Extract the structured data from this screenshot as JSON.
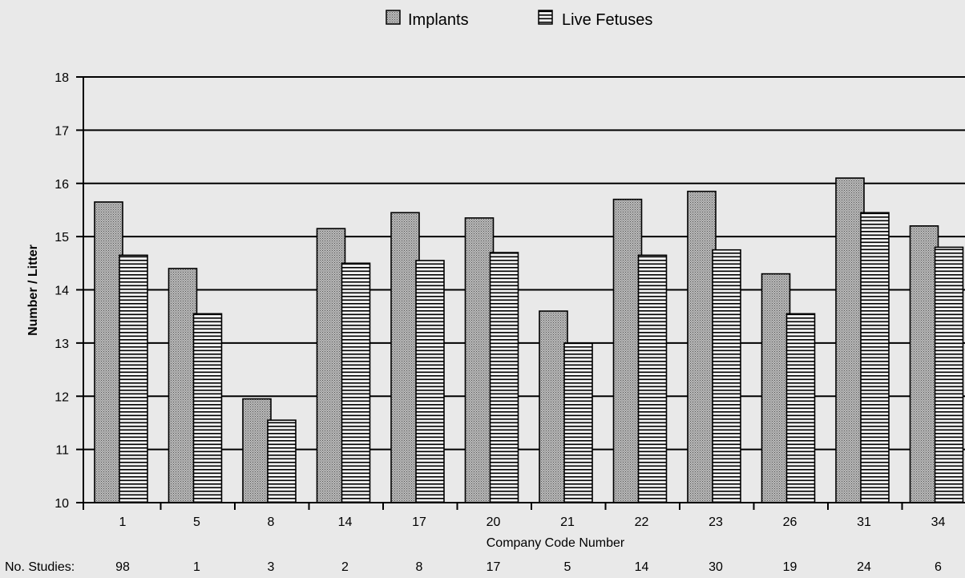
{
  "chart_data": {
    "type": "bar",
    "xlabel": "Company Code Number",
    "ylabel": "Number / Litter",
    "ylim": [
      10,
      18
    ],
    "yticks": [
      10,
      11,
      12,
      13,
      14,
      15,
      16,
      17,
      18
    ],
    "grid": true,
    "legend_position": "top-center",
    "categories": [
      "1",
      "5",
      "8",
      "14",
      "17",
      "20",
      "21",
      "22",
      "23",
      "26",
      "31",
      "34"
    ],
    "series": [
      {
        "name": "Implants",
        "values": [
          15.65,
          14.4,
          11.95,
          15.15,
          15.45,
          15.35,
          13.6,
          15.7,
          15.85,
          14.3,
          16.1,
          15.2
        ],
        "pattern": "stipple"
      },
      {
        "name": "Live Fetuses",
        "values": [
          14.65,
          13.55,
          11.55,
          14.5,
          14.55,
          14.7,
          13.0,
          14.65,
          14.75,
          13.55,
          15.45,
          14.8
        ],
        "pattern": "horizontal-lines"
      }
    ],
    "studies_label": "No. Studies:",
    "studies": [
      "98",
      "1",
      "3",
      "2",
      "8",
      "17",
      "5",
      "14",
      "30",
      "19",
      "24",
      "6"
    ]
  },
  "colors": {
    "background": "#e9e9e9",
    "implant_fill": "#b9b9b9",
    "fetus_fill": "#f2f2f2",
    "ink": "#000000"
  }
}
